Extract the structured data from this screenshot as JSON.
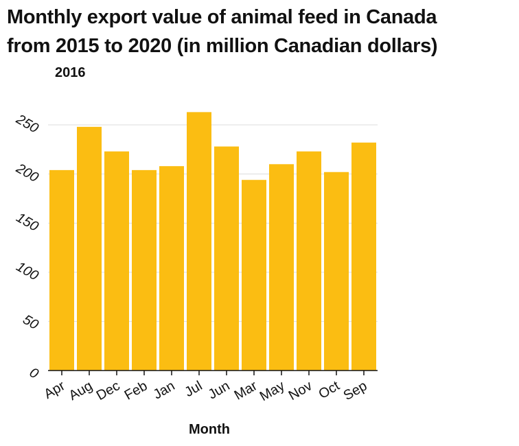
{
  "chart_data": {
    "type": "bar",
    "title": "Monthly export value of animal feed in Canada from 2015 to 2020 (in million Canadian dollars)",
    "title_line1": "Monthly export value of animal feed in Canada",
    "title_line2": "from 2015 to 2020 (in million Canadian dollars)",
    "subtitle": "2016",
    "xlabel": "Month",
    "ylabel": "",
    "categories": [
      "Apr",
      "Aug",
      "Dec",
      "Feb",
      "Jan",
      "Jul",
      "Jun",
      "Mar",
      "May",
      "Nov",
      "Oct",
      "Sep"
    ],
    "values": [
      204,
      248,
      223,
      204,
      208,
      263,
      228,
      194,
      210,
      223,
      202,
      232
    ],
    "ylim": [
      0,
      250
    ],
    "yticks": [
      0,
      50,
      100,
      150,
      200,
      250
    ],
    "grid": "horizontal",
    "bar_color": "#fbbd12"
  }
}
